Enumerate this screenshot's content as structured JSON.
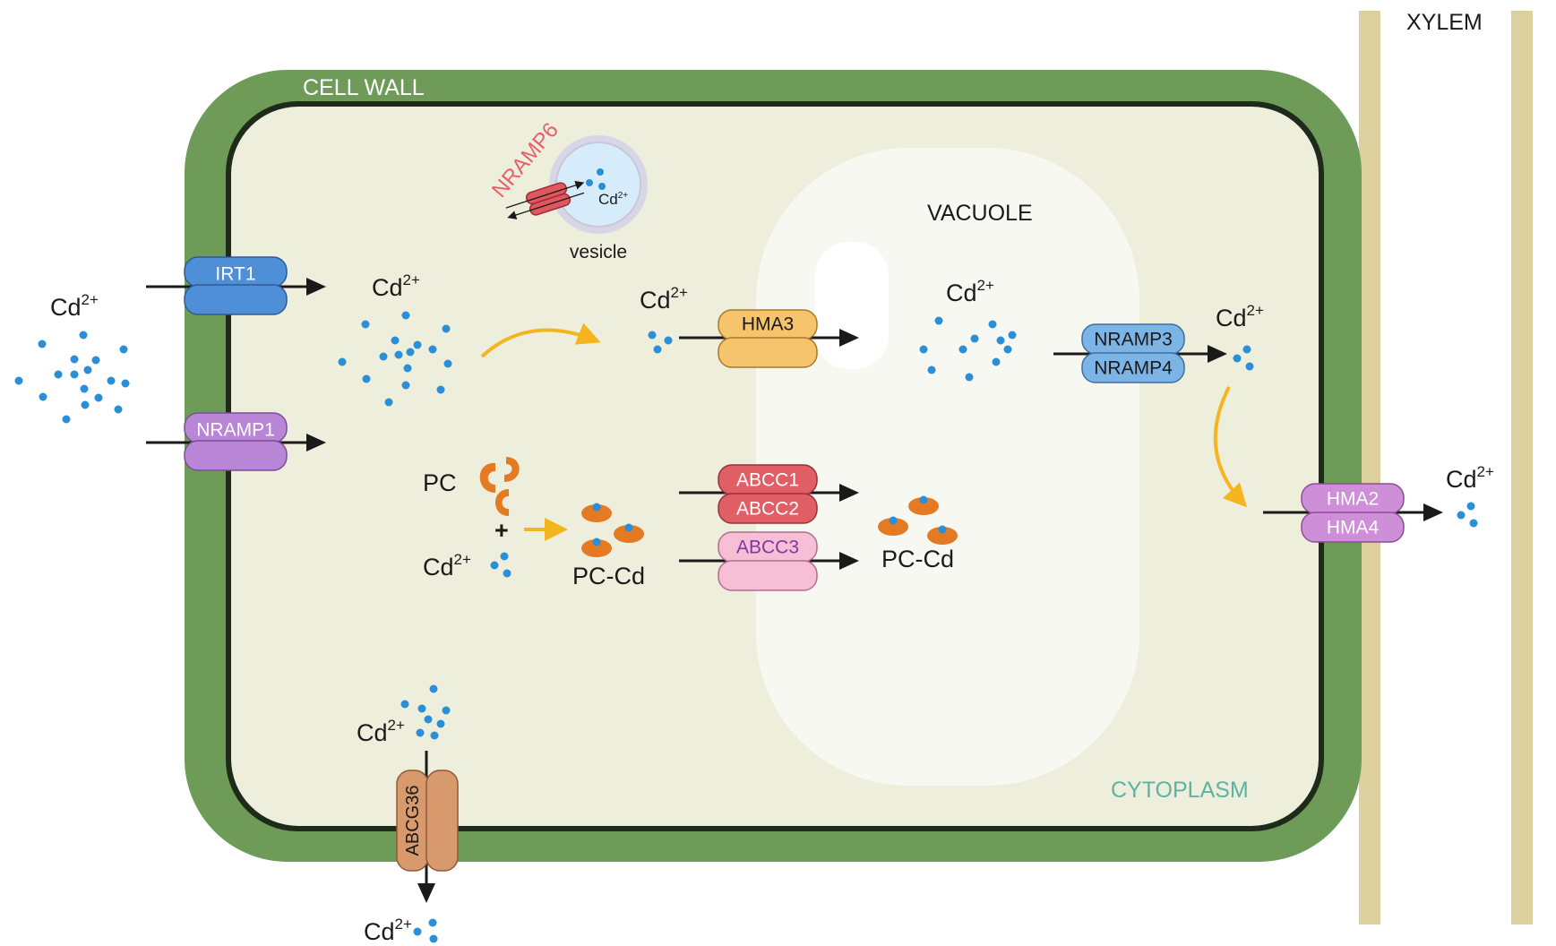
{
  "labels": {
    "cell_wall": "CELL WALL",
    "xylem": "XYLEM",
    "vacuole": "VACUOLE",
    "cytoplasm": "CYTOPLASM",
    "vesicle": "vesicle",
    "pc": "PC",
    "plus": "+",
    "pc_cd": "PC-Cd",
    "ion_base": "Cd",
    "ion_charge": "2+"
  },
  "transporters": {
    "irt1": "IRT1",
    "nramp1": "NRAMP1",
    "nramp6": "NRAMP6",
    "hma3": "HMA3",
    "nramp3": "NRAMP3",
    "nramp4": "NRAMP4",
    "abcc1": "ABCC1",
    "abcc2": "ABCC2",
    "abcc3": "ABCC3",
    "hma2": "HMA2",
    "hma4": "HMA4",
    "abcg36": "ABCG36"
  },
  "colors": {
    "cell_wall": "#6e9c58",
    "cytoplasm": "#eeeedc",
    "vacuole": "#f8f8f2",
    "xylem": "#dcd09e",
    "ion": "#2a8fd6",
    "pc": "#e47a22",
    "arrow_yellow": "#f4b51e",
    "irt1": "#4f8fd8",
    "nramp1": "#b985d6",
    "nramp6": "#e0585e",
    "hma3": "#f5c46c",
    "nramp3_4": "#7db4e6",
    "abcc1_2": "#e05e64",
    "abcc3": "#f6bfd6",
    "hma2_4": "#cf8fd8",
    "abcg36": "#d89a6c",
    "cytoplasm_text": "#5bb4a0",
    "nramp6_text": "#e8606a"
  }
}
